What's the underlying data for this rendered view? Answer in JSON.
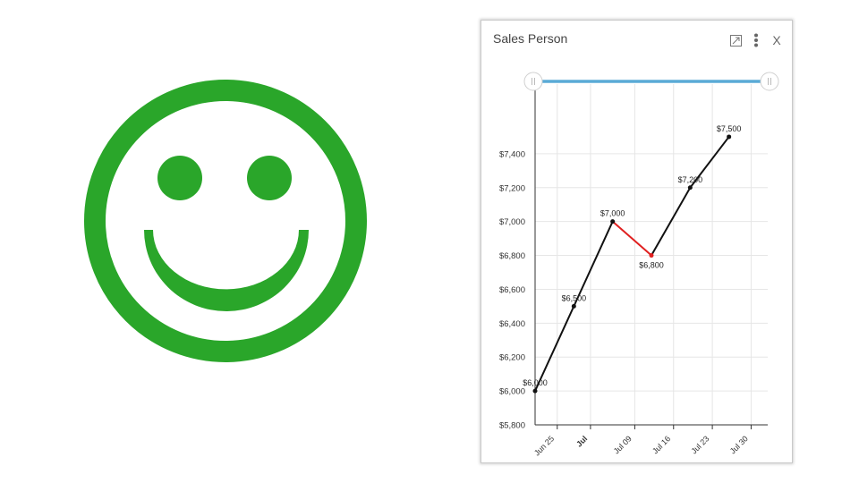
{
  "widget": {
    "title": "Sales Person",
    "icons": [
      "expand-icon",
      "more-vertical-icon",
      "close-icon"
    ],
    "close_glyph": "X"
  },
  "smiley": {
    "color": "#2aa62a"
  },
  "colors": {
    "line": "#111111",
    "line_down": "#e02020",
    "range_bar": "#5aaad6",
    "grid": "#e6e6e6",
    "axis": "#333333"
  },
  "chart_data": {
    "type": "line",
    "title": "Sales Person",
    "xlabel": "",
    "ylabel": "",
    "x_ticks": [
      {
        "label": "Jun 25",
        "date": "2018-06-25",
        "bold": false
      },
      {
        "label": "Jul",
        "date": "2018-07-01",
        "bold": true
      },
      {
        "label": "Jul 09",
        "date": "2018-07-09",
        "bold": false
      },
      {
        "label": "Jul 16",
        "date": "2018-07-16",
        "bold": false
      },
      {
        "label": "Jul 23",
        "date": "2018-07-23",
        "bold": false
      },
      {
        "label": "Jul 30",
        "date": "2018-07-30",
        "bold": false
      }
    ],
    "y_ticks": [
      5800,
      6000,
      6200,
      6400,
      6600,
      6800,
      7000,
      7200,
      7400
    ],
    "y_tick_labels": [
      "$5,800",
      "$6,000",
      "$6,200",
      "$6,400",
      "$6,600",
      "$6,800",
      "$7,000",
      "$7,200",
      "$7,400"
    ],
    "ylim": [
      5800,
      7600
    ],
    "xlim": [
      "2018-06-21",
      "2018-08-02"
    ],
    "grid": true,
    "range_selector": true,
    "series": [
      {
        "points": [
          {
            "date": "2018-06-21",
            "value": 6000,
            "label": "$6,000"
          },
          {
            "date": "2018-06-28",
            "value": 6500,
            "label": "$6,500"
          },
          {
            "date": "2018-07-05",
            "value": 7000,
            "label": "$7,000"
          },
          {
            "date": "2018-07-12",
            "value": 6800,
            "label": "$6,800"
          },
          {
            "date": "2018-07-19",
            "value": 7200,
            "label": "$7,200"
          },
          {
            "date": "2018-07-26",
            "value": 7500,
            "label": "$7,500"
          }
        ]
      }
    ]
  }
}
